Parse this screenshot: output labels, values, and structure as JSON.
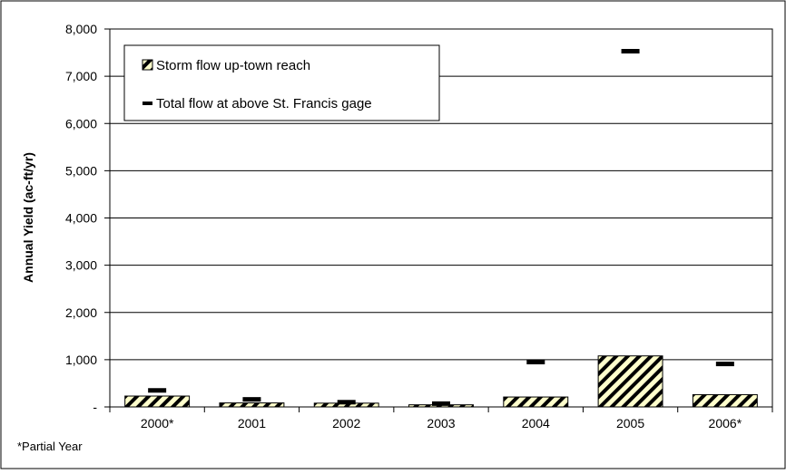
{
  "chart_data": {
    "type": "bar",
    "categories": [
      "2000*",
      "2001",
      "2002",
      "2003",
      "2004",
      "2005",
      "2006*"
    ],
    "series": [
      {
        "name": "Storm flow up-town reach",
        "kind": "bar",
        "pattern": "diagonal-hatch",
        "color": "#000000",
        "fill": "#ffffcc",
        "values": [
          230,
          85,
          80,
          45,
          210,
          1080,
          260
        ]
      },
      {
        "name": "Total flow at above St. Francis gage",
        "kind": "marker",
        "marker": "dash",
        "color": "#000000",
        "values": [
          350,
          160,
          100,
          70,
          950,
          7530,
          910
        ]
      }
    ],
    "ylabel": "Annual Yield (ac-ft/yr)",
    "xlabel": "",
    "ylim": [
      0,
      8000
    ],
    "yticks": [
      0,
      1000,
      2000,
      3000,
      4000,
      5000,
      6000,
      7000,
      8000
    ],
    "ytick_labels": [
      "-",
      "1,000",
      "2,000",
      "3,000",
      "4,000",
      "5,000",
      "6,000",
      "7,000",
      "8,000"
    ],
    "grid": true,
    "legend_position": "top-left",
    "footnote": "*Partial Year"
  }
}
